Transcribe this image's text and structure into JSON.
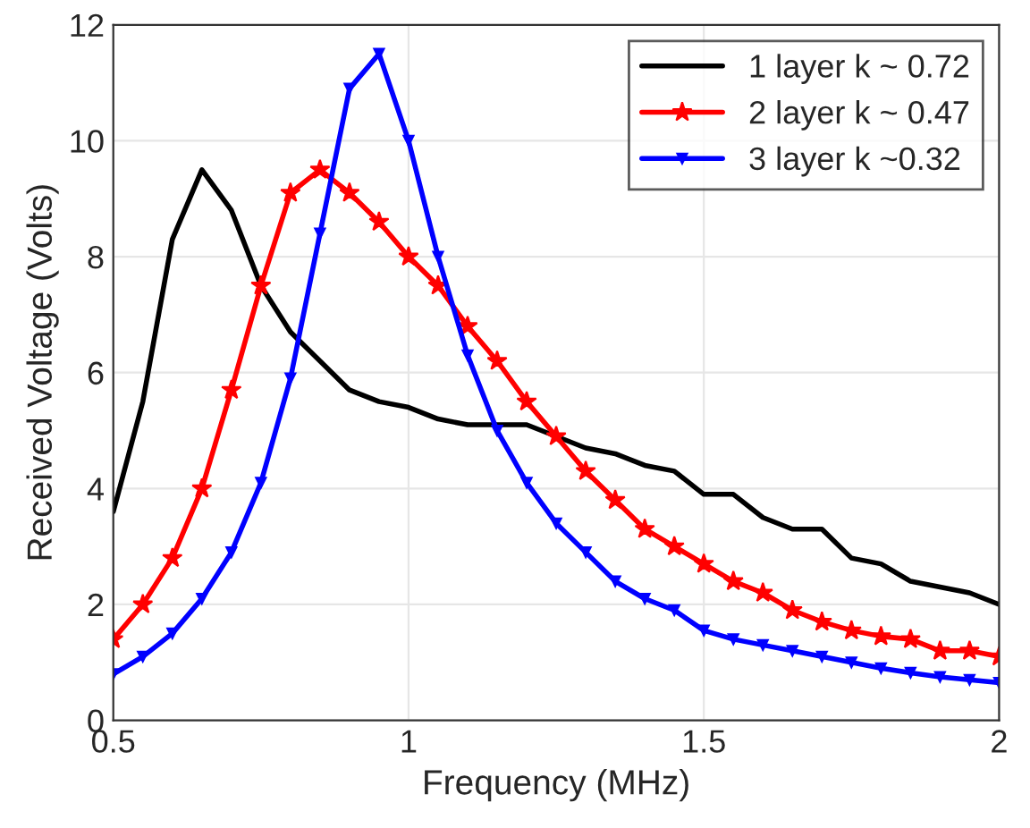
{
  "chart_data": {
    "type": "line",
    "xlabel": "Frequency (MHz)",
    "ylabel": "Received Voltage (Volts)",
    "x": [
      0.5,
      0.55,
      0.6,
      0.65,
      0.7,
      0.75,
      0.8,
      0.85,
      0.9,
      0.95,
      1.0,
      1.05,
      1.1,
      1.15,
      1.2,
      1.25,
      1.3,
      1.35,
      1.4,
      1.45,
      1.5,
      1.55,
      1.6,
      1.65,
      1.7,
      1.75,
      1.8,
      1.85,
      1.9,
      1.95,
      2.0
    ],
    "series": [
      {
        "name": "1 layer k ~ 0.72",
        "color": "#000000",
        "marker": "none",
        "values": [
          3.6,
          5.5,
          8.3,
          9.5,
          8.8,
          7.5,
          6.7,
          6.2,
          5.7,
          5.5,
          5.4,
          5.2,
          5.1,
          5.1,
          5.1,
          4.9,
          4.7,
          4.6,
          4.4,
          4.3,
          3.9,
          3.9,
          3.5,
          3.3,
          3.3,
          2.8,
          2.7,
          2.4,
          2.3,
          2.2,
          2.0
        ]
      },
      {
        "name": "2 layer k ~ 0.47",
        "color": "#ff0000",
        "marker": "star",
        "values": [
          1.4,
          2.0,
          2.8,
          4.0,
          5.7,
          7.5,
          9.1,
          9.5,
          9.1,
          8.6,
          8.0,
          7.5,
          6.8,
          6.2,
          5.5,
          4.9,
          4.3,
          3.8,
          3.3,
          3.0,
          2.7,
          2.4,
          2.2,
          1.9,
          1.7,
          1.55,
          1.45,
          1.4,
          1.2,
          1.2,
          1.1
        ]
      },
      {
        "name": "3 layer k ~0.32",
        "color": "#0000ff",
        "marker": "triangle",
        "values": [
          0.8,
          1.1,
          1.5,
          2.1,
          2.9,
          4.1,
          5.9,
          8.4,
          10.9,
          11.5,
          10.0,
          8.0,
          6.3,
          5.0,
          4.1,
          3.4,
          2.9,
          2.4,
          2.1,
          1.9,
          1.55,
          1.4,
          1.3,
          1.2,
          1.1,
          1.0,
          0.9,
          0.82,
          0.75,
          0.7,
          0.65
        ]
      }
    ],
    "xlim": [
      0.5,
      2
    ],
    "ylim": [
      0,
      12
    ],
    "xticks": [
      0.5,
      1,
      1.5,
      2
    ],
    "yticks": [
      0,
      2,
      4,
      6,
      8,
      10,
      12
    ],
    "grid": true,
    "legend": "top right",
    "line_style": "solid"
  }
}
